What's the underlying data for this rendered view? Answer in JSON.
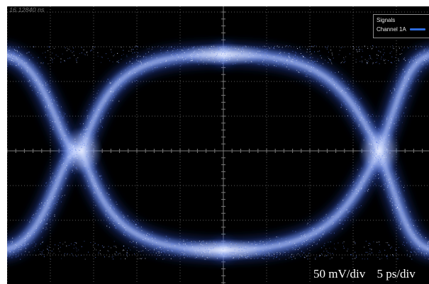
{
  "time_readout": "16.12840 ns",
  "legend": {
    "title": "Signals",
    "channel_label": "Channel 1A",
    "channel_color": "#2f6de0"
  },
  "scale": {
    "vertical": "50 mV/div",
    "horizontal": "5 ps/div"
  },
  "colors": {
    "background": "#000000",
    "grid": "#5a5a5a",
    "trace_core": "#f0f4ff",
    "trace_mid": "#7b9cf2",
    "trace_edge": "#2448b8"
  },
  "eye_diagram": {
    "channel": "Channel 1A",
    "grid_divisions": {
      "horizontal": 10,
      "vertical": 8
    },
    "display": "eye pattern with top rail, bottom rail and two crossing points"
  }
}
